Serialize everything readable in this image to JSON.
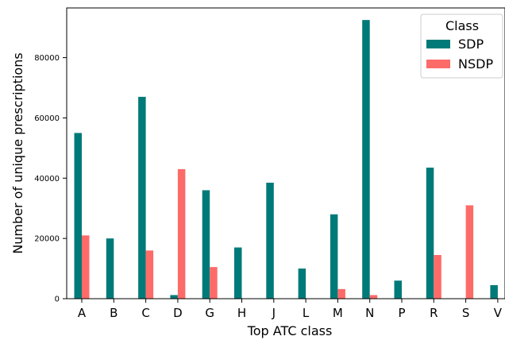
{
  "chart_data": {
    "type": "bar",
    "xlabel": "Top ATC class",
    "ylabel": "Number of unique prescriptions",
    "categories": [
      "A",
      "B",
      "C",
      "D",
      "G",
      "H",
      "J",
      "L",
      "M",
      "N",
      "P",
      "R",
      "S",
      "V"
    ],
    "series": [
      {
        "name": "SDP",
        "color": "#007a78",
        "values": [
          55000,
          20000,
          67000,
          1200,
          36000,
          17000,
          38500,
          10000,
          28000,
          92500,
          6000,
          43500,
          0,
          4500
        ]
      },
      {
        "name": "NSDP",
        "color": "#fd6b69",
        "values": [
          21000,
          0,
          16000,
          43000,
          10500,
          0,
          0,
          0,
          3200,
          1200,
          0,
          14500,
          31000,
          0
        ]
      }
    ],
    "ylim": [
      0,
      96500
    ],
    "yticks": [
      0,
      20000,
      40000,
      60000,
      80000
    ],
    "legend": {
      "title": "Class",
      "position": "top-right"
    },
    "grid": false
  }
}
